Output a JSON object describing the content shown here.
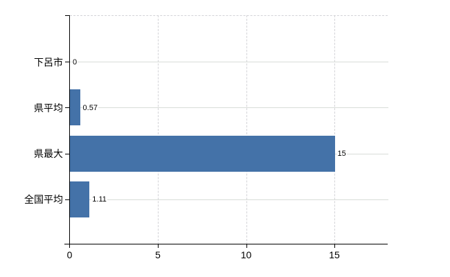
{
  "chart_data": {
    "type": "bar",
    "orientation": "horizontal",
    "title": "",
    "categories": [
      "下呂市",
      "県平均",
      "県最大",
      "全国平均"
    ],
    "values": [
      0,
      0.57,
      15,
      1.11
    ],
    "value_labels": [
      "0",
      "0.57",
      "15",
      "1.11"
    ],
    "x_tick_values": [
      0,
      5,
      10,
      15
    ],
    "x_tick_labels": [
      "0",
      "5",
      "10",
      "15"
    ],
    "xlim": [
      0,
      18
    ],
    "grid": true,
    "legend": "none",
    "colors": {
      "bar": "#4472a8",
      "axis": "#000000",
      "grid_solid": "#d8dcd8",
      "grid_dashed": "#d3d3d7",
      "text": "#000000",
      "background": "#ffffff"
    }
  }
}
